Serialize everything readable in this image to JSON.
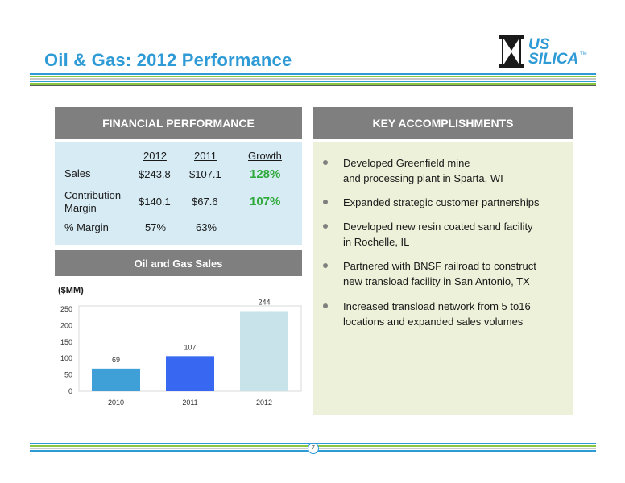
{
  "slide": {
    "title": "Oil & Gas: 2012 Performance",
    "page_number": "7"
  },
  "logo": {
    "line1": "US",
    "line2": "SILICA",
    "tm": "TM"
  },
  "colors": {
    "accent_blue": "#2e9ad6",
    "green": "#2eaa3a",
    "header_gray": "#7f7f7f"
  },
  "financial": {
    "header": "FINANCIAL PERFORMANCE",
    "columns": [
      "2012",
      "2011",
      "Growth"
    ],
    "rows": [
      {
        "label": "Sales",
        "v2012": "$243.8",
        "v2011": "$107.1",
        "growth": "128%"
      },
      {
        "label": "Contribution Margin",
        "v2012": "$140.1",
        "v2011": "$67.6",
        "growth": "107%"
      },
      {
        "label": "% Margin",
        "v2012": "57%",
        "v2011": "63%",
        "growth": ""
      }
    ]
  },
  "accomplishments": {
    "header": "KEY ACCOMPLISHMENTS",
    "items": [
      {
        "line1": "Developed Greenfield mine",
        "line2": "and processing plant in Sparta, WI"
      },
      {
        "line1": "Expanded strategic customer partnerships",
        "line2": ""
      },
      {
        "line1": "Developed new resin coated sand facility",
        "line2": "in Rochelle, IL"
      },
      {
        "line1": "Partnered with BNSF railroad to construct",
        "line2": "new transload facility in San Antonio, TX"
      },
      {
        "line1": "Increased transload network from 5 to16",
        "line2": "locations and expanded sales volumes"
      }
    ]
  },
  "chart_header": "Oil and Gas Sales",
  "chart_data": {
    "type": "bar",
    "ylabel": "($MM)",
    "categories": [
      "2010",
      "2011",
      "2012"
    ],
    "values": [
      69,
      107,
      244
    ],
    "data_labels": [
      "69",
      "107",
      "244"
    ],
    "bar_colors": [
      "#3fa0d8",
      "#3868f2",
      "#c8e4ea"
    ],
    "ylim": [
      0,
      250
    ],
    "yticks": [
      0,
      50,
      100,
      150,
      200,
      250
    ]
  }
}
